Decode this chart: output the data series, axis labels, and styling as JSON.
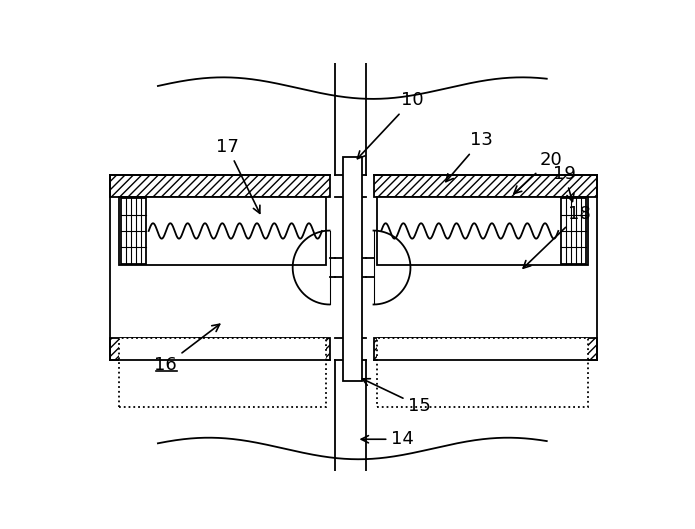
{
  "background": "#ffffff",
  "line_color": "#000000",
  "fig_width": 6.95,
  "fig_height": 5.29,
  "dpi": 100,
  "lw": 1.3
}
